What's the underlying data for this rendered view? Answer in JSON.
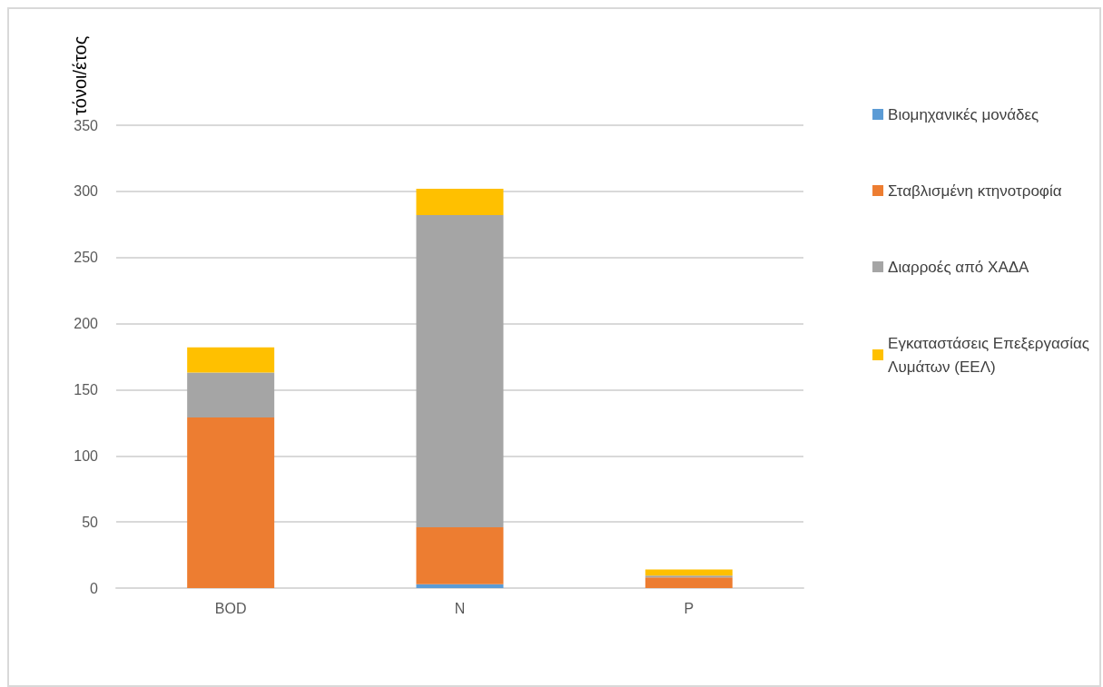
{
  "chart_data": {
    "type": "bar",
    "stacked": true,
    "ylabel": "τόνοι/έτος",
    "categories": [
      "BOD",
      "N",
      "P"
    ],
    "series": [
      {
        "name": "Βιομηχανικές μονάδες",
        "color": "#5b9bd5",
        "values": [
          0,
          3,
          0
        ]
      },
      {
        "name": "Σταβλισμένη κτηνοτροφία",
        "color": "#ed7d31",
        "values": [
          129,
          43,
          8
        ]
      },
      {
        "name": "Διαρροές από ΧΑΔΑ",
        "color": "#a5a5a5",
        "values": [
          34,
          236,
          1.5
        ]
      },
      {
        "name": "Εγκαταστάσεις Επεξεργασίας\nΛυμάτων (ΕΕΛ)",
        "color": "#ffc000",
        "values": [
          19,
          20,
          4.5
        ]
      }
    ],
    "ylim": [
      0,
      350
    ],
    "yticks": [
      0,
      50,
      100,
      150,
      200,
      250,
      300,
      350
    ],
    "grid": "y",
    "legend": "right"
  }
}
